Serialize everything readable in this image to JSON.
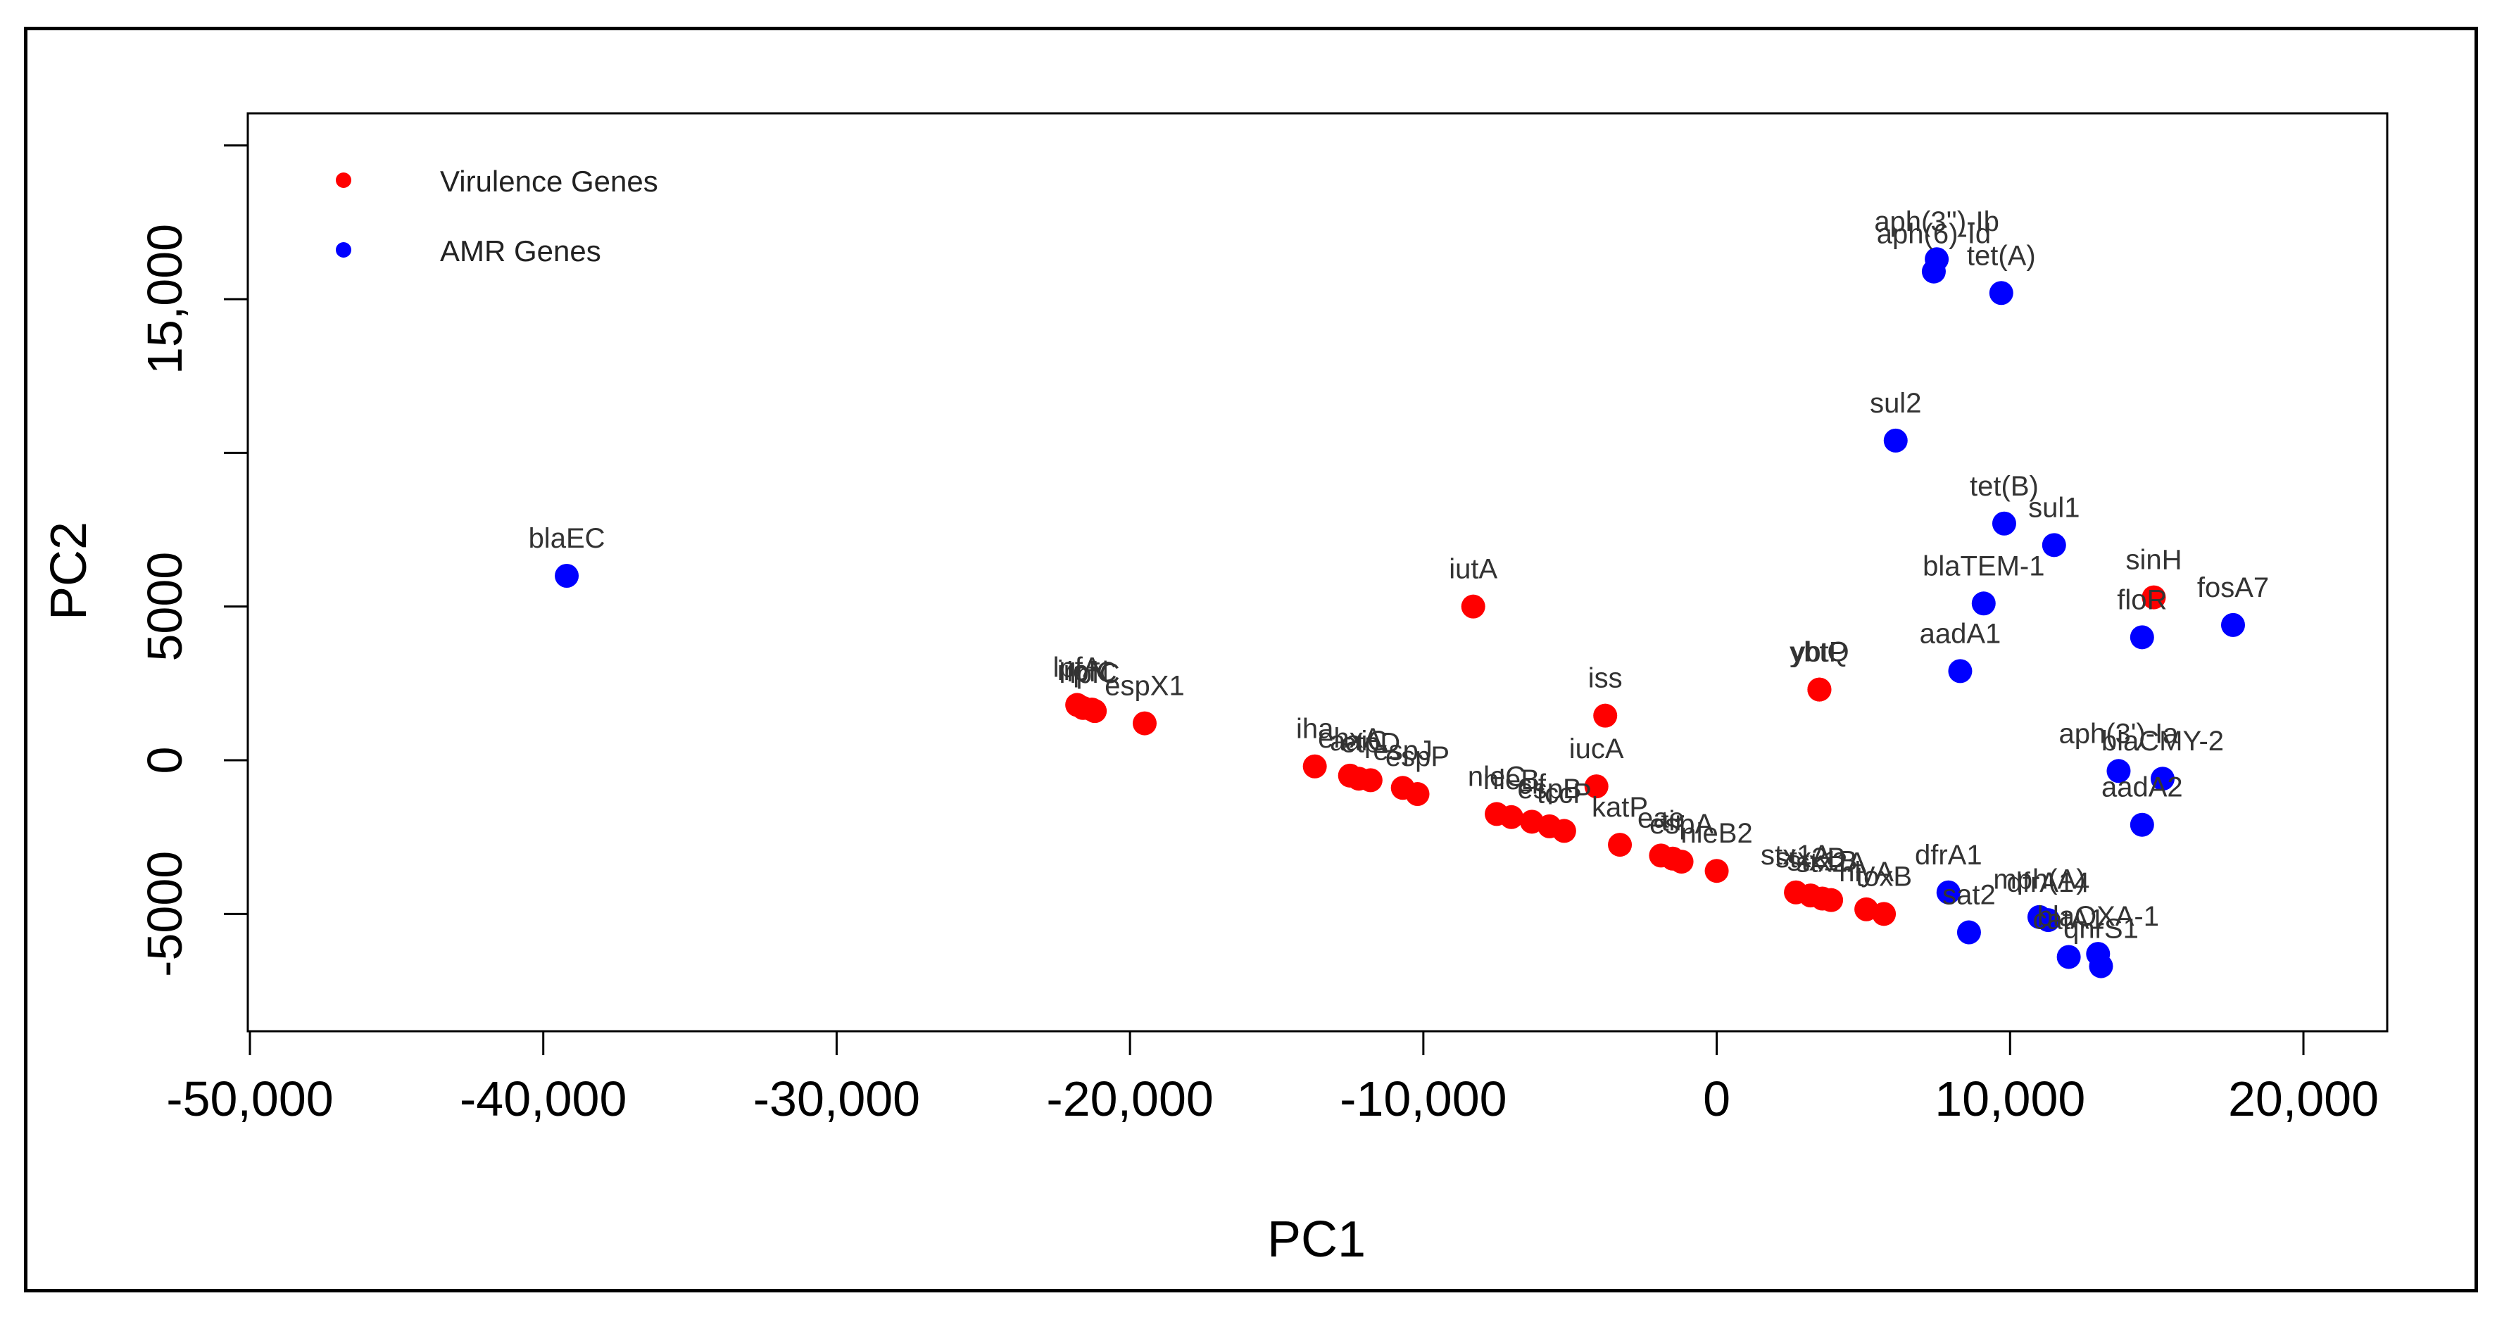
{
  "chart_data": {
    "type": "scatter",
    "title": "",
    "xlabel": "PC1",
    "ylabel": "PC2",
    "xlim": [
      -50000,
      22000
    ],
    "ylim": [
      -8500,
      20000
    ],
    "xticks": [
      -50000,
      -40000,
      -30000,
      -20000,
      -10000,
      0,
      10000,
      20000
    ],
    "xtick_labels": [
      "-50,000",
      "-40,000",
      "-30,000",
      "-20,000",
      "-10,000",
      "0",
      "10,000",
      "20,000"
    ],
    "yticks": [
      -5000,
      0,
      5000,
      10000,
      15000,
      20000
    ],
    "ytick_labels": [
      "-5000",
      "0",
      "5000",
      "",
      "15,000",
      ""
    ],
    "legend": {
      "position": "top-left"
    },
    "colors": {
      "Virulence Genes": "#ff0000",
      "AMR Genes": "#0000ff"
    },
    "series": [
      {
        "name": "Virulence Genes",
        "points": [
          {
            "x": 3500,
            "y": 2300,
            "label": "ybtQ"
          },
          {
            "x": 3500,
            "y": 2300,
            "label": "ybtP"
          },
          {
            "x": -21800,
            "y": 1800,
            "label": "lpfA"
          },
          {
            "x": -21600,
            "y": 1700,
            "label": "iroN"
          },
          {
            "x": -21300,
            "y": 1650,
            "label": "ipfC"
          },
          {
            "x": -21200,
            "y": 1600,
            "label": "lpfC"
          },
          {
            "x": -19500,
            "y": 1200,
            "label": "espX1"
          },
          {
            "x": -8300,
            "y": 5000,
            "label": "iutA"
          },
          {
            "x": -3800,
            "y": 1450,
            "label": "iss"
          },
          {
            "x": -13700,
            "y": -200,
            "label": "iha"
          },
          {
            "x": -12500,
            "y": -500,
            "label": "ehxA"
          },
          {
            "x": -12200,
            "y": -600,
            "label": "aaiC"
          },
          {
            "x": -11800,
            "y": -650,
            "label": "etpD"
          },
          {
            "x": -10700,
            "y": -900,
            "label": "espJ"
          },
          {
            "x": -10200,
            "y": -1100,
            "label": "espP"
          },
          {
            "x": -4100,
            "y": -850,
            "label": "iucA"
          },
          {
            "x": -7500,
            "y": -1750,
            "label": "nleC"
          },
          {
            "x": -7000,
            "y": -1850,
            "label": "nleB"
          },
          {
            "x": -6300,
            "y": -2000,
            "label": "cif"
          },
          {
            "x": -5700,
            "y": -2150,
            "label": "espB"
          },
          {
            "x": -5200,
            "y": -2300,
            "label": "tccP"
          },
          {
            "x": -3300,
            "y": -2750,
            "label": "katP"
          },
          {
            "x": -1900,
            "y": -3100,
            "label": "eae"
          },
          {
            "x": -1500,
            "y": -3200,
            "label": "tir"
          },
          {
            "x": -1200,
            "y": -3300,
            "label": "espA"
          },
          {
            "x": 0,
            "y": -3600,
            "label": "nleB2"
          },
          {
            "x": 2700,
            "y": -4300,
            "label": "stx1A"
          },
          {
            "x": 3200,
            "y": -4400,
            "label": "stx2B"
          },
          {
            "x": 3600,
            "y": -4500,
            "label": "stx1B"
          },
          {
            "x": 3900,
            "y": -4550,
            "label": "stx2A"
          },
          {
            "x": 5100,
            "y": -4850,
            "label": "hlyA"
          },
          {
            "x": 5700,
            "y": -5000,
            "label": "toxB"
          },
          {
            "x": 14900,
            "y": 5300,
            "label": "sinH"
          }
        ]
      },
      {
        "name": "AMR Genes",
        "points": [
          {
            "x": -39200,
            "y": 6000,
            "label": "blaEC"
          },
          {
            "x": 7500,
            "y": 16300,
            "label": "aph(3'')-Ib"
          },
          {
            "x": 7400,
            "y": 15900,
            "label": "aph(6)-Id"
          },
          {
            "x": 9700,
            "y": 15200,
            "label": "tet(A)"
          },
          {
            "x": 6100,
            "y": 10400,
            "label": "sul2"
          },
          {
            "x": 9800,
            "y": 7700,
            "label": "tet(B)"
          },
          {
            "x": 11500,
            "y": 7000,
            "label": "sul1"
          },
          {
            "x": 9100,
            "y": 5100,
            "label": "blaTEM-1"
          },
          {
            "x": 8300,
            "y": 2900,
            "label": "aadA1"
          },
          {
            "x": 14500,
            "y": 4000,
            "label": "floR"
          },
          {
            "x": 17600,
            "y": 4400,
            "label": "fosA7"
          },
          {
            "x": 13700,
            "y": -350,
            "label": "aph(3')-Ia"
          },
          {
            "x": 15200,
            "y": -600,
            "label": "blaCMY-2"
          },
          {
            "x": 14500,
            "y": -2100,
            "label": "aadA2"
          },
          {
            "x": 7900,
            "y": -4300,
            "label": "dfrA1"
          },
          {
            "x": 8600,
            "y": -5600,
            "label": "sat2"
          },
          {
            "x": 11000,
            "y": -5100,
            "label": "mph(A)"
          },
          {
            "x": 11300,
            "y": -5200,
            "label": "dfrA14"
          },
          {
            "x": 12000,
            "y": -6400,
            "label": "catA1"
          },
          {
            "x": 13000,
            "y": -6300,
            "label": "blaOXA-1"
          },
          {
            "x": 13100,
            "y": -6700,
            "label": "qnrS1"
          }
        ]
      }
    ]
  }
}
